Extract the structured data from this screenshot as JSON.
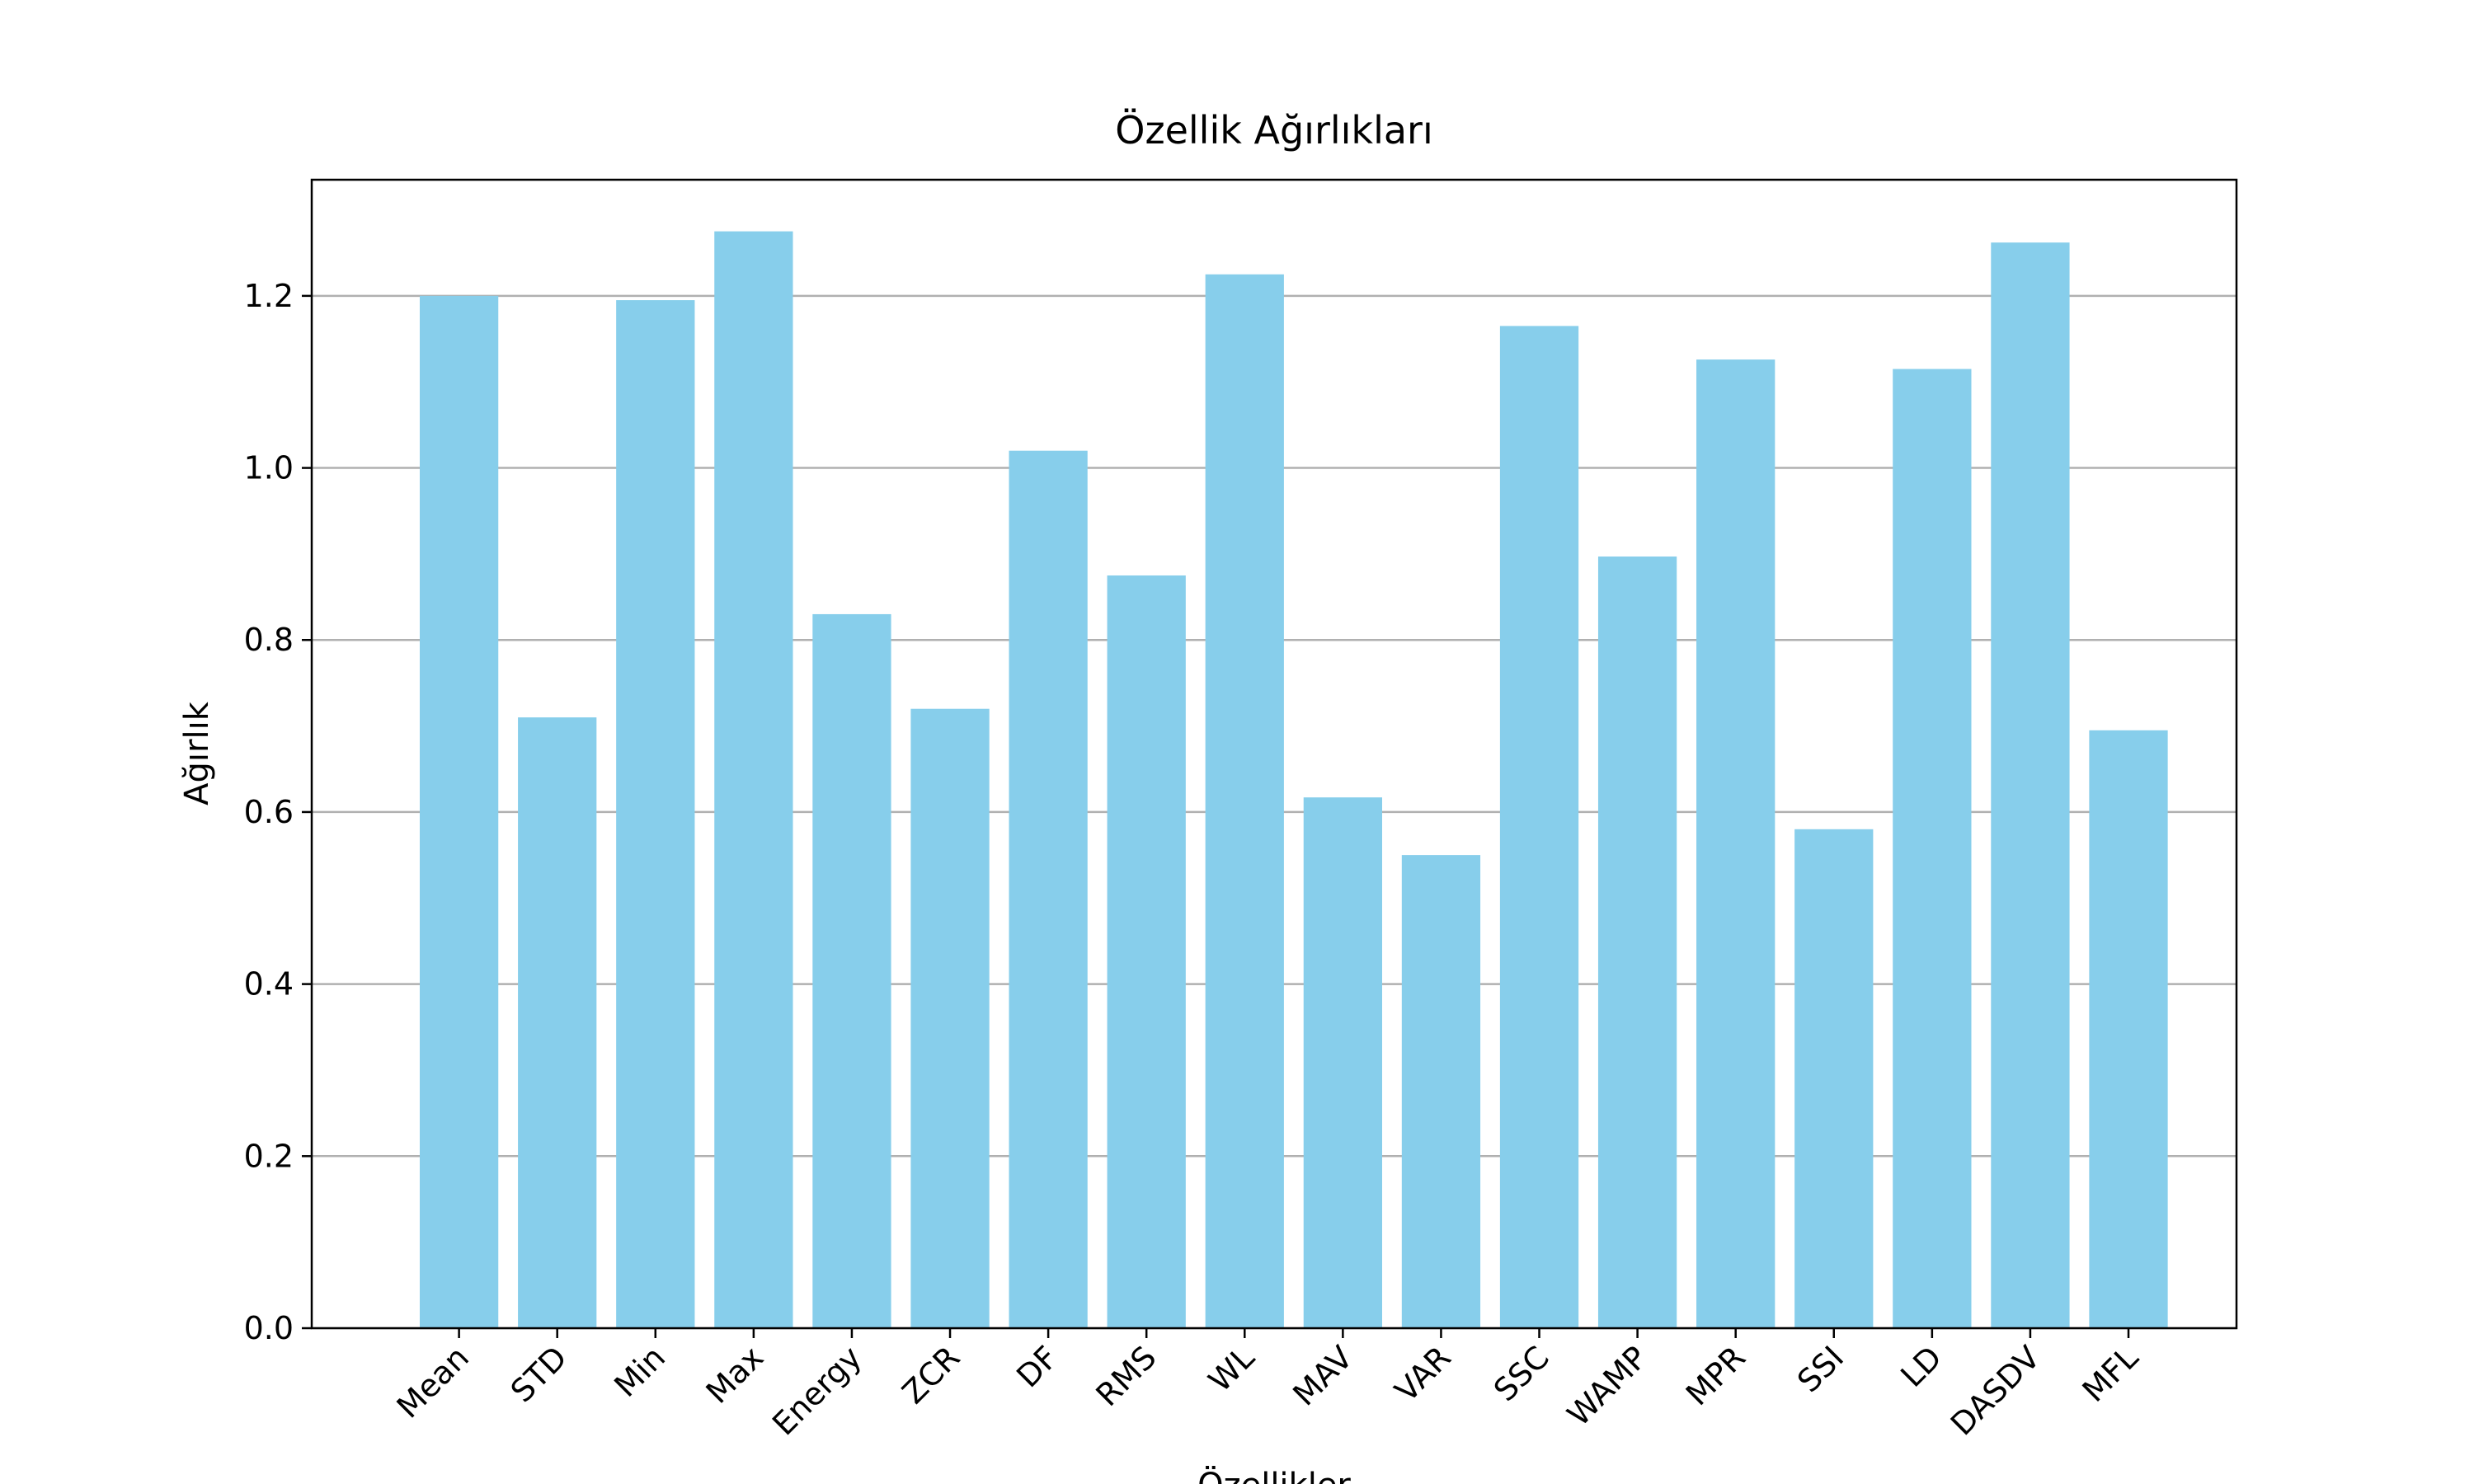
{
  "chart_data": {
    "type": "bar",
    "title": "Özellik Ağırlıkları",
    "xlabel": "Özellikler",
    "ylabel": "Ağırlık",
    "categories": [
      "Mean",
      "STD",
      "Min",
      "Max",
      "Energy",
      "ZCR",
      "DF",
      "RMS",
      "WL",
      "MAV",
      "VAR",
      "SSC",
      "WAMP",
      "MPR",
      "SSI",
      "LD",
      "DASDV",
      "MFL"
    ],
    "values": [
      1.2,
      0.71,
      1.195,
      1.275,
      0.83,
      0.72,
      1.02,
      0.875,
      1.225,
      0.617,
      0.55,
      1.165,
      0.897,
      1.126,
      0.58,
      1.115,
      1.262,
      0.695
    ],
    "ylim": [
      0,
      1.335
    ],
    "yticks": [
      "0.0",
      "0.2",
      "0.4",
      "0.6",
      "0.8",
      "1.0",
      "1.2"
    ],
    "bar_color": "#87CEEB",
    "grid": "horizontal",
    "grid_color": "#b0b0b0",
    "legend": "none"
  }
}
